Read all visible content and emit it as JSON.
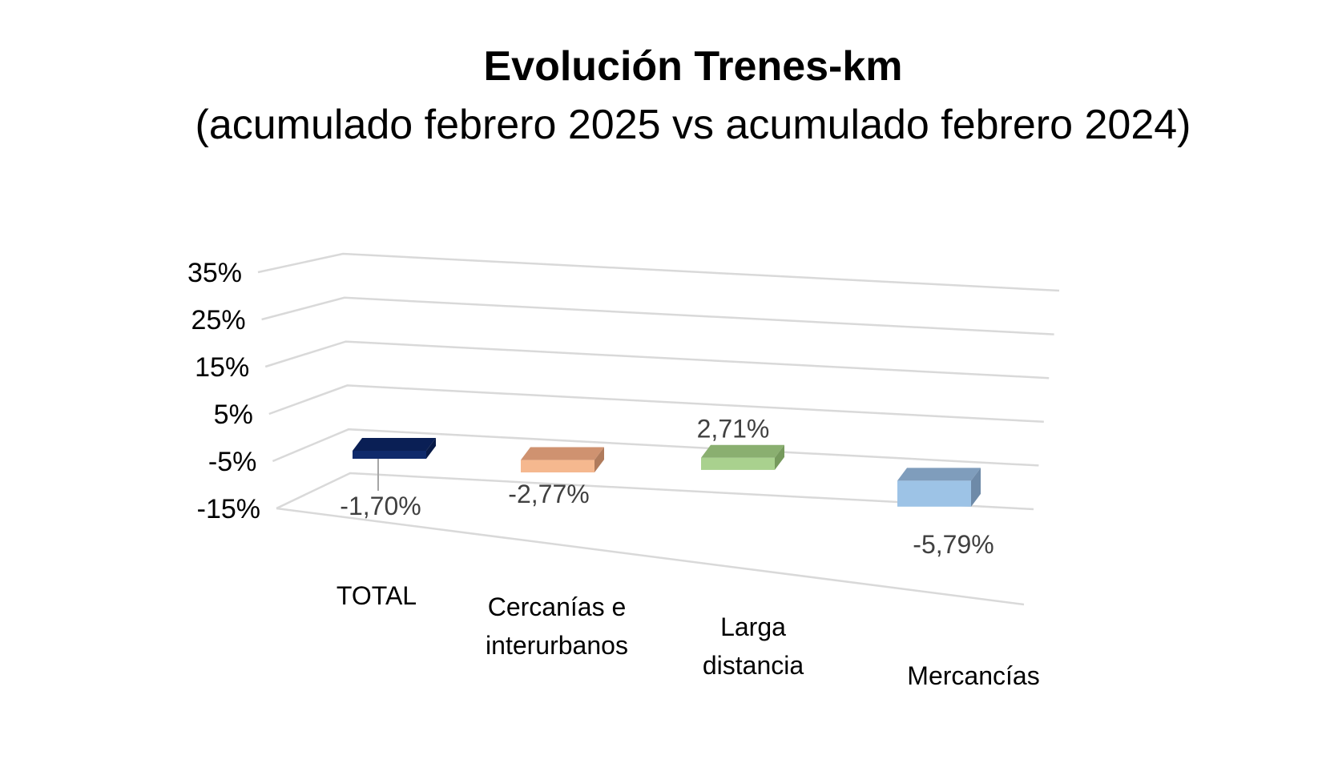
{
  "chart_data": {
    "type": "bar",
    "title": "Evolución Trenes-km",
    "subtitle": "(acumulado febrero 2025 vs acumulado febrero 2024)",
    "categories": [
      [
        "TOTAL"
      ],
      [
        "Cercanías e",
        "interurbanos"
      ],
      [
        "Larga",
        "distancia"
      ],
      [
        "Mercancías"
      ]
    ],
    "values": [
      -1.7,
      -2.77,
      2.71,
      -5.79
    ],
    "data_labels": [
      "-1,70%",
      "-2,77%",
      "2,71%",
      "-5,79%"
    ],
    "y_ticks": [
      "35%",
      "25%",
      "15%",
      "5%",
      "-5%",
      "-15%"
    ],
    "ylim": [
      -15,
      35
    ],
    "grid": true,
    "style": "3d",
    "colors": {
      "front": [
        "#0f2a6b",
        "#f5b88f",
        "#a9d18e",
        "#9dc3e6"
      ],
      "top": [
        "#0a1f55",
        "#cf9270",
        "#8aaf70",
        "#7f9dbc"
      ],
      "side": [
        "#081a47",
        "#b07b5c",
        "#769a5d",
        "#6e8aa8"
      ],
      "grid": "#d9d9d9"
    }
  }
}
